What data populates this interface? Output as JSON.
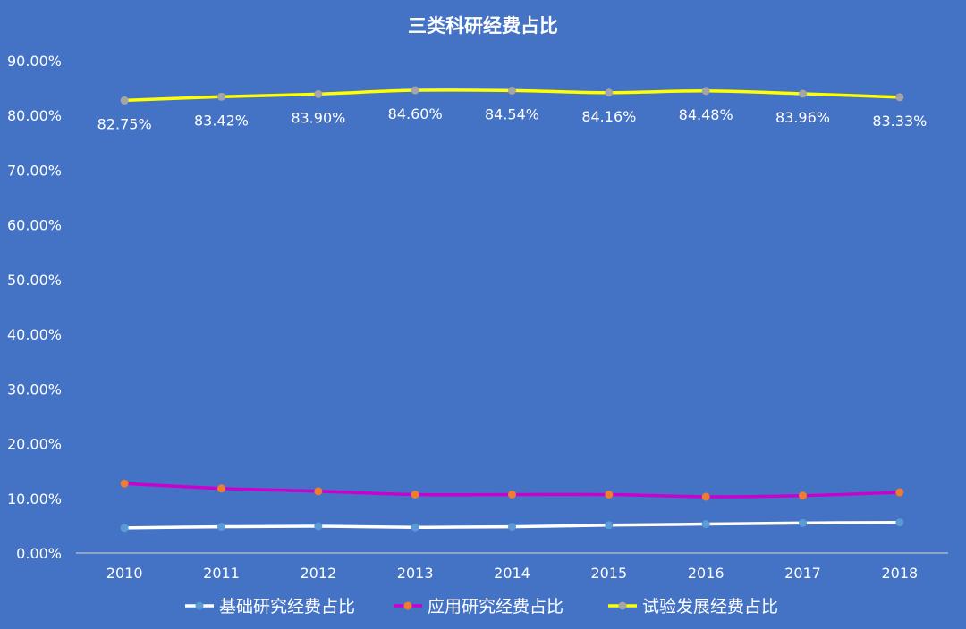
{
  "chart_data": {
    "type": "line",
    "title": "三类科研经费占比",
    "categories": [
      "2010",
      "2011",
      "2012",
      "2013",
      "2014",
      "2015",
      "2016",
      "2017",
      "2018"
    ],
    "ylim": [
      0,
      90
    ],
    "yticks": [
      "0.00%",
      "10.00%",
      "20.00%",
      "30.00%",
      "40.00%",
      "50.00%",
      "60.00%",
      "70.00%",
      "80.00%",
      "90.00%"
    ],
    "grid": false,
    "legend_position": "bottom",
    "series": [
      {
        "name": "基础研究经费占比",
        "values": [
          4.6,
          4.8,
          4.9,
          4.7,
          4.8,
          5.1,
          5.3,
          5.5,
          5.6
        ],
        "line_color": "#FFFFFF",
        "marker_color": "#5B9BD5",
        "show_labels": false
      },
      {
        "name": "应用研究经费占比",
        "values": [
          12.7,
          11.8,
          11.3,
          10.7,
          10.7,
          10.7,
          10.3,
          10.5,
          11.1
        ],
        "line_color": "#CC00CC",
        "marker_color": "#ED7D31",
        "show_labels": false
      },
      {
        "name": "试验发展经费占比",
        "values": [
          82.75,
          83.42,
          83.9,
          84.6,
          84.54,
          84.16,
          84.48,
          83.96,
          83.33
        ],
        "labels": [
          "82.75%",
          "83.42%",
          "83.90%",
          "84.60%",
          "84.54%",
          "84.16%",
          "84.48%",
          "83.96%",
          "83.33%"
        ],
        "line_color": "#FFFF00",
        "marker_color": "#A5A5A5",
        "show_labels": true
      }
    ]
  }
}
